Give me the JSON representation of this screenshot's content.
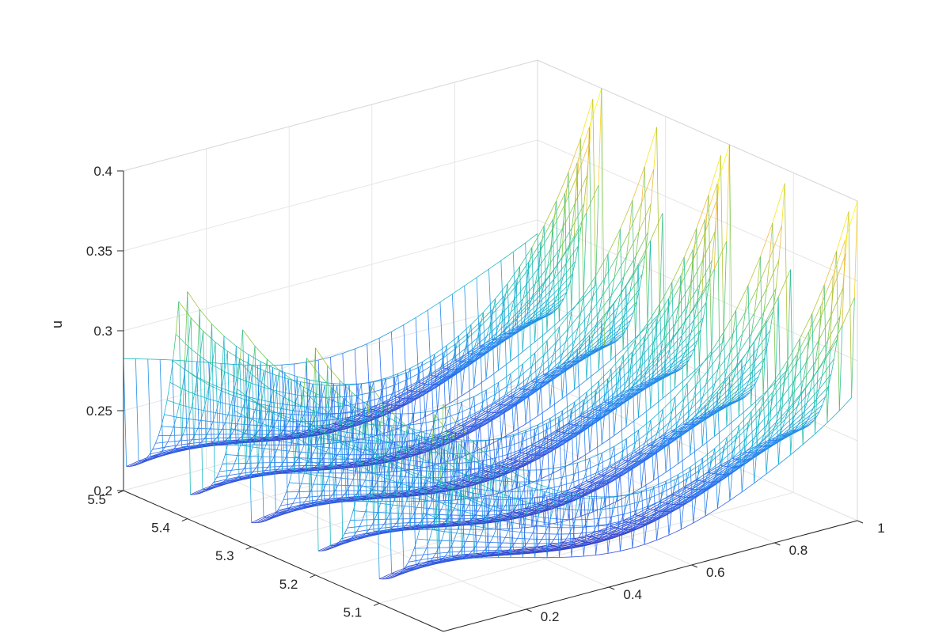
{
  "chart_data": {
    "type": "mesh3d",
    "title": "",
    "xlabel": "",
    "ylabel": "",
    "zlabel": "u",
    "xlim": [
      0,
      1
    ],
    "ylim": [
      5.0,
      5.5
    ],
    "zlim": [
      0.2,
      0.4
    ],
    "x_ticks": [
      "0.2",
      "0.4",
      "0.6",
      "0.8",
      "1"
    ],
    "y_ticks": [
      "5.1",
      "5.2",
      "5.3",
      "5.4",
      "5.5"
    ],
    "z_ticks": [
      "0.2",
      "0.25",
      "0.3",
      "0.35",
      "0.4"
    ],
    "grid": true,
    "box": true,
    "colormap": [
      "#3e26a8",
      "#2e6ef6",
      "#1ab3d6",
      "#2ac39c",
      "#9bc839",
      "#f6b93d",
      "#f9fb0e"
    ],
    "mesh_color_mode": "by-height",
    "surface_profile": {
      "description_points_y": [
        5.0,
        5.1,
        5.2,
        5.3,
        5.4,
        5.5
      ],
      "peaks_at_y": [
        5.0,
        5.1,
        5.2,
        5.3,
        5.4
      ],
      "peak_u_near_x0": 0.33,
      "trough_u": 0.2,
      "peak_u_near_x1": 0.39,
      "mid_u": 0.27
    }
  }
}
